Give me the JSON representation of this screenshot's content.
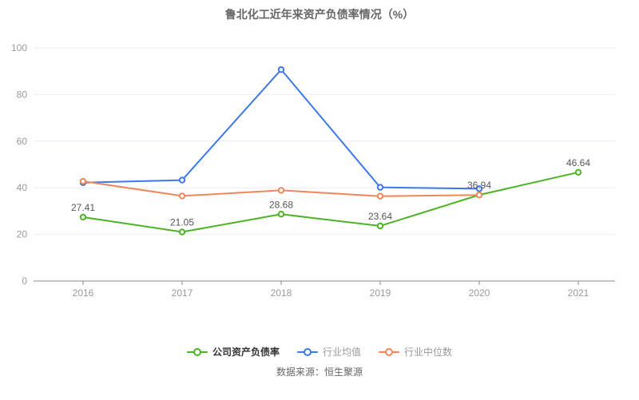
{
  "title": "鲁北化工近年来资产负债率情况（%）",
  "source": "数据来源：恒生聚源",
  "colors": {
    "grid": "#e9eef6",
    "axis": "#888888",
    "tick_label": "#999999",
    "data_label": "#555555",
    "title": "#666666"
  },
  "chart_data": {
    "type": "line",
    "categories": [
      "2016",
      "2017",
      "2018",
      "2019",
      "2020",
      "2021"
    ],
    "series": [
      {
        "key": "company-debt-ratio",
        "name": "公司资产负债率",
        "color": "#4cb422",
        "values": [
          27.41,
          21.05,
          28.68,
          23.64,
          36.94,
          46.64
        ],
        "show_labels": true,
        "legend_text_color": "#333333",
        "legend_bold": true
      },
      {
        "key": "industry-mean",
        "name": "行业均值",
        "color": "#3c78e8",
        "values": [
          42.2,
          43.3,
          90.7,
          40.2,
          39.6,
          null
        ],
        "show_labels": false,
        "legend_text_color": "#999999",
        "legend_bold": false
      },
      {
        "key": "industry-median",
        "name": "行业中位数",
        "color": "#f0875a",
        "values": [
          42.8,
          36.5,
          38.9,
          36.4,
          36.9,
          null
        ],
        "show_labels": false,
        "legend_text_color": "#999999",
        "legend_bold": false
      }
    ],
    "ylim": [
      0,
      100
    ],
    "yticks": [
      0,
      20,
      40,
      60,
      80,
      100
    ],
    "grid": true,
    "legend_position": "bottom"
  }
}
